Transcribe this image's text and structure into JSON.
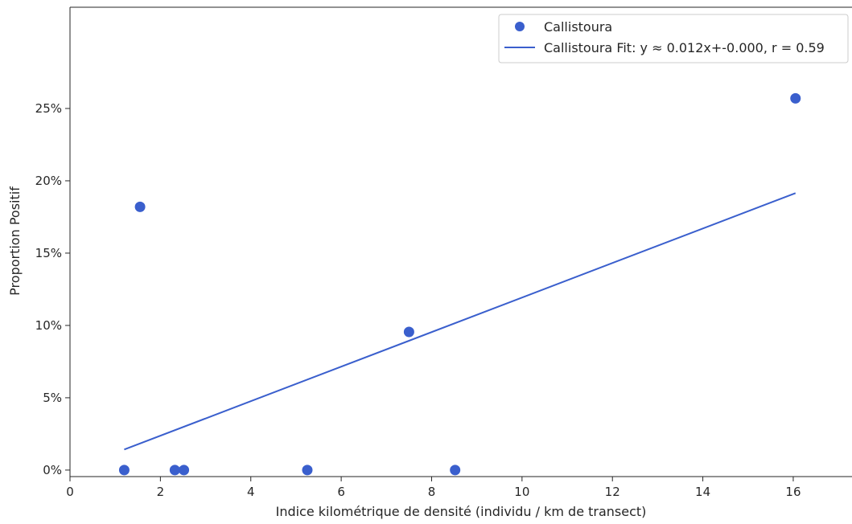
{
  "chart_data": {
    "type": "scatter",
    "xlabel": "Indice kilométrique de densité (individu / km de transect)",
    "ylabel": "Proportion Positif",
    "xlim": [
      0,
      17.3
    ],
    "ylim": [
      -0.0045,
      0.32
    ],
    "xticks": [
      0,
      2,
      4,
      6,
      8,
      10,
      12,
      14,
      16
    ],
    "yticks": [
      0,
      0.05,
      0.1,
      0.15,
      0.2,
      0.25
    ],
    "ytick_labels": [
      "0%",
      "5%",
      "10%",
      "15%",
      "20%",
      "25%"
    ],
    "grid": false,
    "legend_position": "top-right",
    "series": [
      {
        "name": "Callistoura",
        "kind": "scatter",
        "color": "#3a5fcd",
        "points": [
          {
            "x": 1.2,
            "y": 0.0
          },
          {
            "x": 1.55,
            "y": 0.182
          },
          {
            "x": 2.32,
            "y": 0.0
          },
          {
            "x": 2.52,
            "y": 0.0
          },
          {
            "x": 5.25,
            "y": 0.0
          },
          {
            "x": 7.5,
            "y": 0.0955
          },
          {
            "x": 8.52,
            "y": 0.0
          },
          {
            "x": 16.05,
            "y": 0.257
          }
        ]
      },
      {
        "name": "Callistoura Fit: y ≈ 0.012x+-0.000, r = 0.59",
        "kind": "line",
        "color": "#3a5fcd",
        "points": [
          {
            "x": 1.2,
            "y": 0.0142
          },
          {
            "x": 16.05,
            "y": 0.1915
          }
        ]
      }
    ],
    "legend": {
      "entries": [
        {
          "label": "Callistoura",
          "marker": "circle"
        },
        {
          "label": "Callistoura Fit: y ≈ 0.012x+-0.000, r = 0.59",
          "marker": "line"
        }
      ]
    }
  }
}
